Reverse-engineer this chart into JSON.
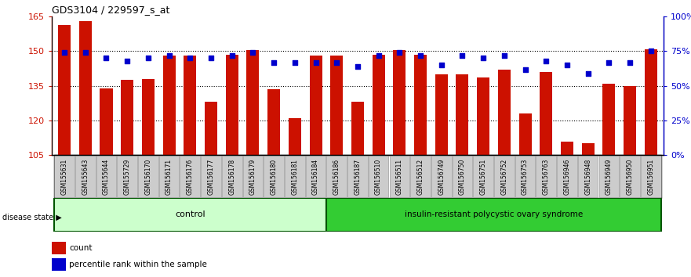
{
  "title": "GDS3104 / 229597_s_at",
  "samples": [
    "GSM155631",
    "GSM155643",
    "GSM155644",
    "GSM155729",
    "GSM156170",
    "GSM156171",
    "GSM156176",
    "GSM156177",
    "GSM156178",
    "GSM156179",
    "GSM156180",
    "GSM156181",
    "GSM156184",
    "GSM156186",
    "GSM156187",
    "GSM156510",
    "GSM156511",
    "GSM156512",
    "GSM156749",
    "GSM156750",
    "GSM156751",
    "GSM156752",
    "GSM156753",
    "GSM156763",
    "GSM156946",
    "GSM156948",
    "GSM156949",
    "GSM156950",
    "GSM156951"
  ],
  "count_values": [
    161.5,
    163.0,
    134.0,
    137.5,
    138.0,
    148.0,
    148.0,
    128.0,
    148.5,
    150.5,
    133.5,
    121.0,
    148.0,
    148.0,
    128.0,
    148.5,
    150.5,
    148.5,
    140.0,
    140.0,
    138.5,
    142.0,
    123.0,
    141.0,
    111.0,
    110.0,
    136.0,
    135.0,
    151.0
  ],
  "percentile_values": [
    74,
    74,
    70,
    68,
    70,
    72,
    70,
    70,
    72,
    74,
    67,
    67,
    67,
    67,
    64,
    72,
    74,
    72,
    65,
    72,
    70,
    72,
    62,
    68,
    65,
    59,
    67,
    67,
    75
  ],
  "control_count": 13,
  "ylim_left": [
    105,
    165
  ],
  "ylim_right": [
    0,
    100
  ],
  "yticks_left": [
    105,
    120,
    135,
    150,
    165
  ],
  "yticks_right": [
    0,
    25,
    50,
    75,
    100
  ],
  "ytick_labels_right": [
    "0%",
    "25%",
    "50%",
    "75%",
    "100%"
  ],
  "bar_color": "#CC1100",
  "dot_color": "#0000CC",
  "axis_label_color_left": "#CC1100",
  "axis_label_color_right": "#0000CC",
  "control_label": "control",
  "disease_label": "insulin-resistant polycystic ovary syndrome",
  "disease_state_label": "disease state",
  "legend_count_label": "count",
  "legend_pct_label": "percentile rank within the sample",
  "control_bg": "#CCFFCC",
  "disease_bg": "#33CC33",
  "xticklabel_bg": "#CCCCCC",
  "bar_width": 0.6
}
